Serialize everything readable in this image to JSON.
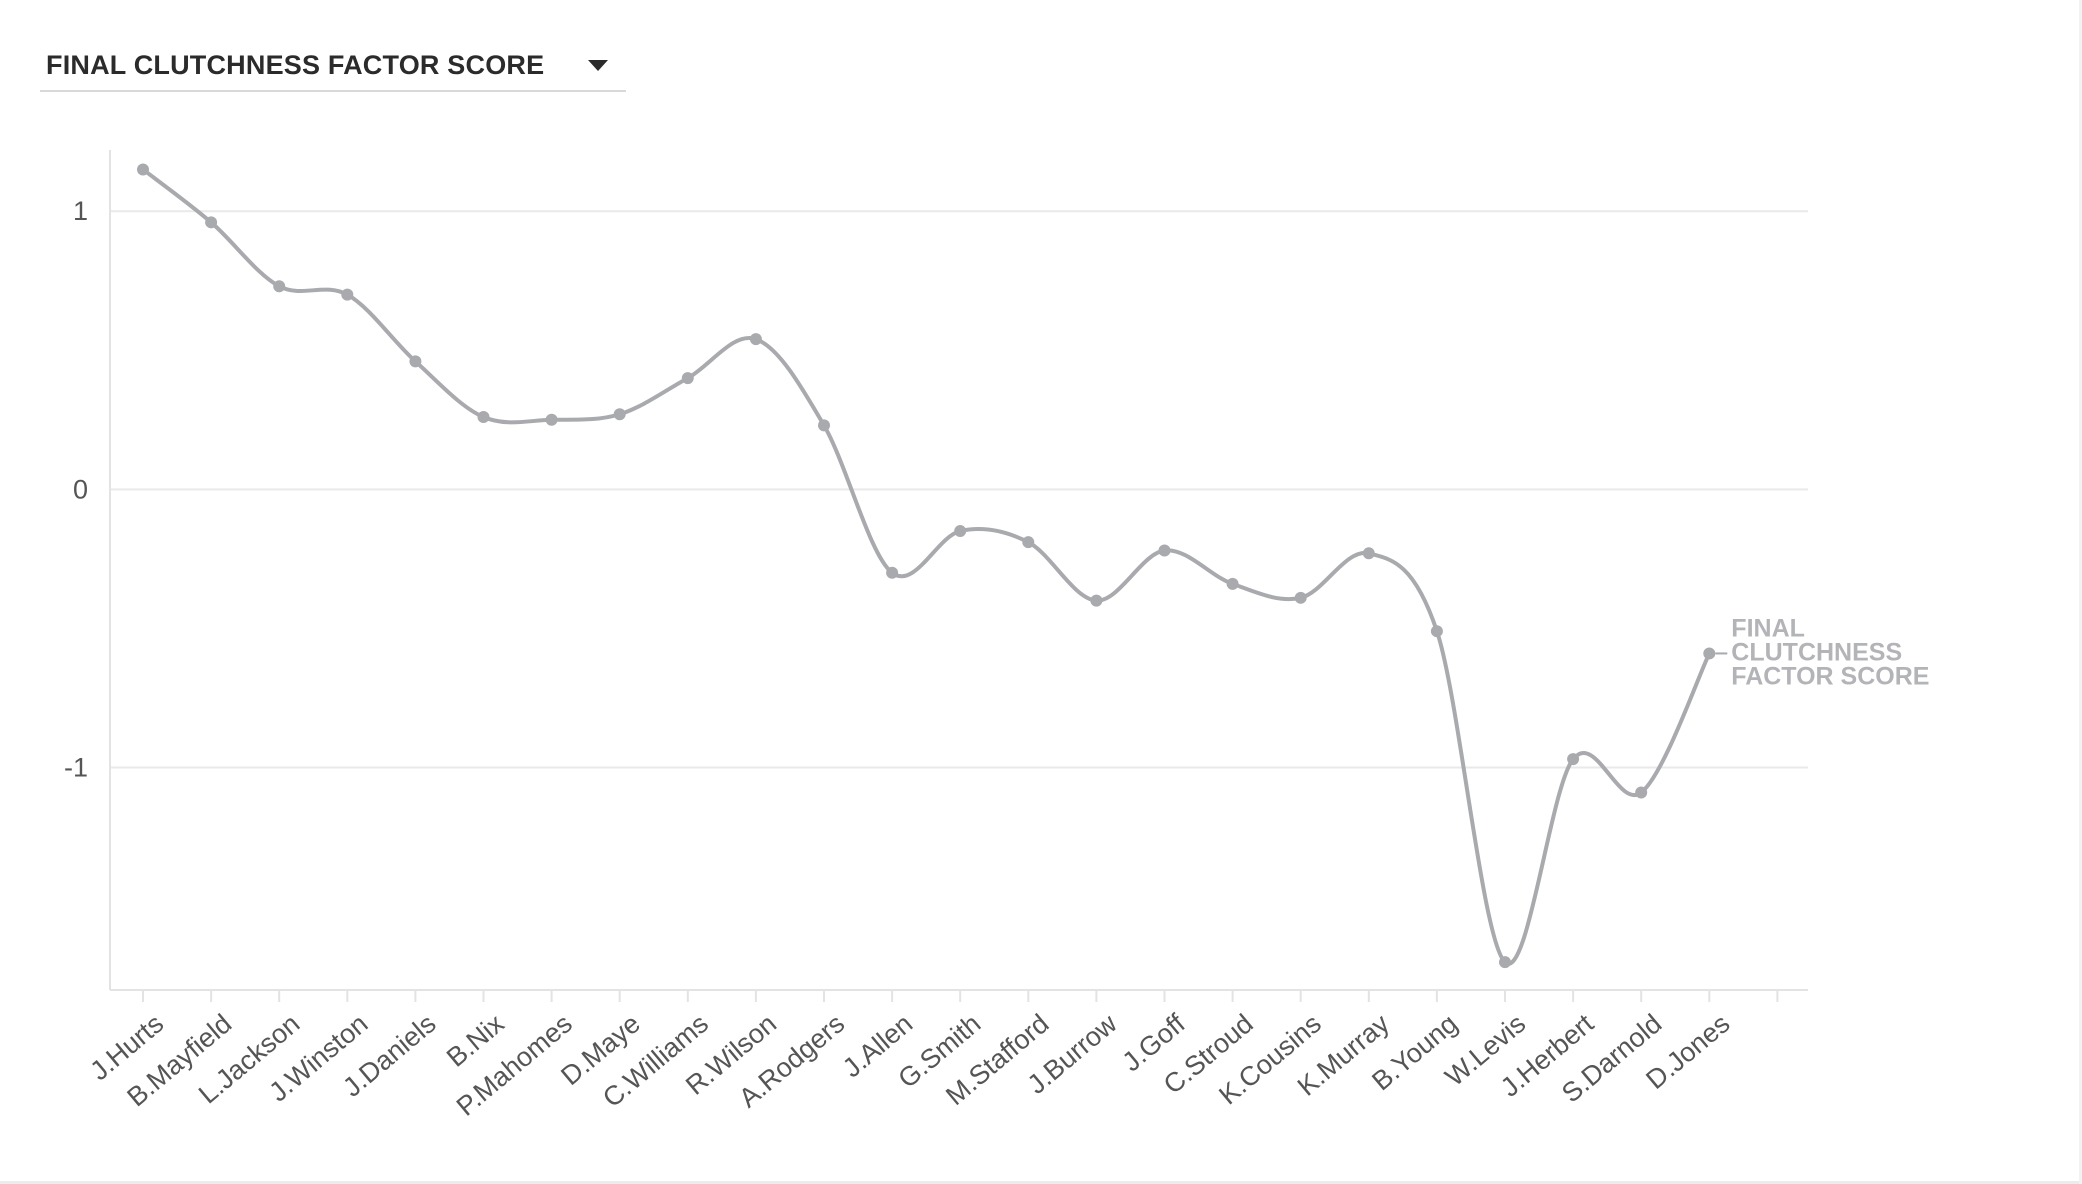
{
  "measure_selector": {
    "selected": "FINAL CLUTCHNESS FACTOR SCORE",
    "caret_icon": "caret-down-icon"
  },
  "chart_data": {
    "type": "line",
    "title": "",
    "xlabel": "",
    "ylabel": "",
    "ylim": [
      -1.8,
      1.22
    ],
    "y_ticks": [
      1,
      0,
      -1
    ],
    "y_tick_labels": [
      "1",
      "0",
      "-1"
    ],
    "grid": true,
    "curve": "smooth",
    "categories": [
      "J.Hurts",
      "B.Mayfield",
      "L.Jackson",
      "J.Winston",
      "J.Daniels",
      "B.Nix",
      "P.Mahomes",
      "D.Maye",
      "C.Williams",
      "R.Wilson",
      "A.Rodgers",
      "J.Allen",
      "G.Smith",
      "M.Stafford",
      "J.Burrow",
      "J.Goff",
      "C.Stroud",
      "K.Cousins",
      "K.Murray",
      "B.Young",
      "W.Levis",
      "J.Herbert",
      "S.Darnold",
      "D.Jones"
    ],
    "series": [
      {
        "name": "FINAL CLUTCHNESS FACTOR SCORE",
        "label_lines": [
          "FINAL",
          "CLUTCHNESS",
          "FACTOR SCORE"
        ],
        "color": "#a9aaae",
        "values": [
          1.15,
          0.96,
          0.73,
          0.7,
          0.46,
          0.26,
          0.25,
          0.27,
          0.4,
          0.54,
          0.23,
          -0.3,
          -0.15,
          -0.19,
          -0.4,
          -0.22,
          -0.34,
          -0.39,
          -0.23,
          -0.51,
          -1.7,
          -0.97,
          -1.09,
          -0.59
        ]
      }
    ]
  }
}
